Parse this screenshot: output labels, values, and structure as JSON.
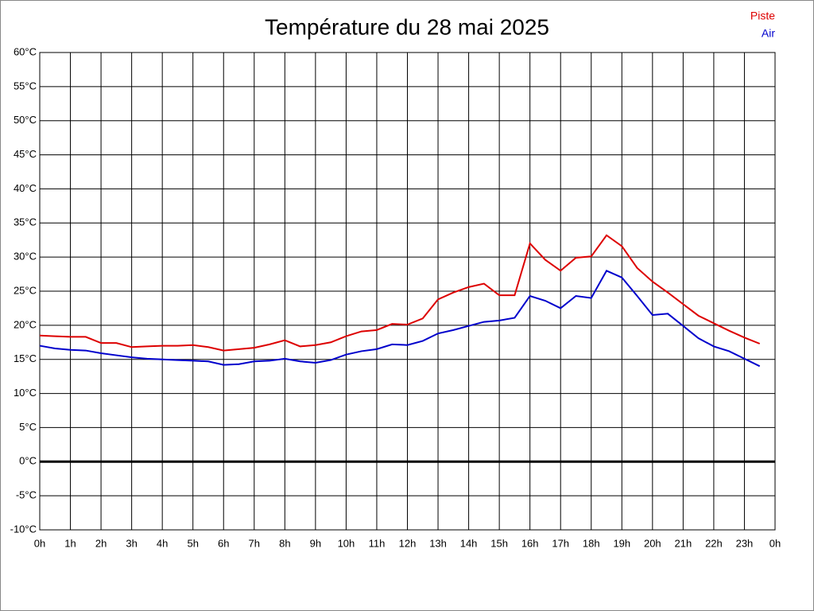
{
  "chart_data": {
    "type": "line",
    "title": "Température du 28 mai 2025",
    "x": [
      0,
      0.5,
      1,
      1.5,
      2,
      2.5,
      3,
      3.5,
      4,
      4.5,
      5,
      5.5,
      6,
      6.5,
      7,
      7.5,
      8,
      8.5,
      9,
      9.5,
      10,
      10.5,
      11,
      11.5,
      12,
      12.5,
      13,
      13.5,
      14,
      14.5,
      15,
      15.5,
      16,
      16.5,
      17,
      17.5,
      18,
      18.5,
      19,
      19.5,
      20,
      20.5,
      21,
      21.5,
      22,
      22.5,
      23,
      23.5
    ],
    "series": [
      {
        "name": "Piste",
        "color": "#dd0000",
        "values": [
          18.5,
          18.4,
          18.3,
          18.3,
          17.4,
          17.4,
          16.8,
          16.9,
          17.0,
          17.0,
          17.1,
          16.8,
          16.3,
          16.5,
          16.7,
          17.2,
          17.8,
          16.9,
          17.1,
          17.5,
          18.4,
          19.1,
          19.3,
          20.2,
          20.1,
          21.0,
          23.8,
          24.8,
          25.6,
          26.1,
          24.4,
          24.4,
          32.0,
          29.6,
          28.0,
          29.9,
          30.1,
          33.2,
          31.6,
          28.4,
          26.4,
          24.8,
          23.1,
          21.4,
          20.3,
          19.2,
          18.2,
          17.3
        ]
      },
      {
        "name": "Air",
        "color": "#0000cc",
        "values": [
          17.0,
          16.6,
          16.4,
          16.3,
          15.9,
          15.6,
          15.3,
          15.1,
          15.0,
          14.9,
          14.8,
          14.7,
          14.2,
          14.3,
          14.7,
          14.8,
          15.1,
          14.7,
          14.5,
          14.9,
          15.7,
          16.2,
          16.5,
          17.2,
          17.1,
          17.7,
          18.8,
          19.3,
          19.9,
          20.5,
          20.7,
          21.1,
          24.3,
          23.6,
          22.5,
          24.3,
          24.0,
          28.0,
          27.0,
          24.3,
          21.5,
          21.7,
          19.9,
          18.1,
          16.9,
          16.2,
          15.1,
          14.0
        ]
      }
    ],
    "xlim": [
      0,
      24
    ],
    "xticks": [
      {
        "value": 0,
        "label": "0h"
      },
      {
        "value": 1,
        "label": "1h"
      },
      {
        "value": 2,
        "label": "2h"
      },
      {
        "value": 3,
        "label": "3h"
      },
      {
        "value": 4,
        "label": "4h"
      },
      {
        "value": 5,
        "label": "5h"
      },
      {
        "value": 6,
        "label": "6h"
      },
      {
        "value": 7,
        "label": "7h"
      },
      {
        "value": 8,
        "label": "8h"
      },
      {
        "value": 9,
        "label": "9h"
      },
      {
        "value": 10,
        "label": "10h"
      },
      {
        "value": 11,
        "label": "11h"
      },
      {
        "value": 12,
        "label": "12h"
      },
      {
        "value": 13,
        "label": "13h"
      },
      {
        "value": 14,
        "label": "14h"
      },
      {
        "value": 15,
        "label": "15h"
      },
      {
        "value": 16,
        "label": "16h"
      },
      {
        "value": 17,
        "label": "17h"
      },
      {
        "value": 18,
        "label": "18h"
      },
      {
        "value": 19,
        "label": "19h"
      },
      {
        "value": 20,
        "label": "20h"
      },
      {
        "value": 21,
        "label": "21h"
      },
      {
        "value": 22,
        "label": "22h"
      },
      {
        "value": 23,
        "label": "23h"
      },
      {
        "value": 24,
        "label": "0h"
      }
    ],
    "ylim": [
      -10,
      60
    ],
    "yticks": [
      {
        "value": -10,
        "label": "-10°C"
      },
      {
        "value": -5,
        "label": "-5°C"
      },
      {
        "value": 0,
        "label": "0°C"
      },
      {
        "value": 5,
        "label": "5°C"
      },
      {
        "value": 10,
        "label": "10°C"
      },
      {
        "value": 15,
        "label": "15°C"
      },
      {
        "value": 20,
        "label": "20°C"
      },
      {
        "value": 25,
        "label": "25°C"
      },
      {
        "value": 30,
        "label": "30°C"
      },
      {
        "value": 35,
        "label": "35°C"
      },
      {
        "value": 40,
        "label": "40°C"
      },
      {
        "value": 45,
        "label": "45°C"
      },
      {
        "value": 50,
        "label": "50°C"
      },
      {
        "value": 55,
        "label": "55°C"
      },
      {
        "value": 60,
        "label": "60°C"
      }
    ],
    "grid": true,
    "legend": "top-right"
  }
}
